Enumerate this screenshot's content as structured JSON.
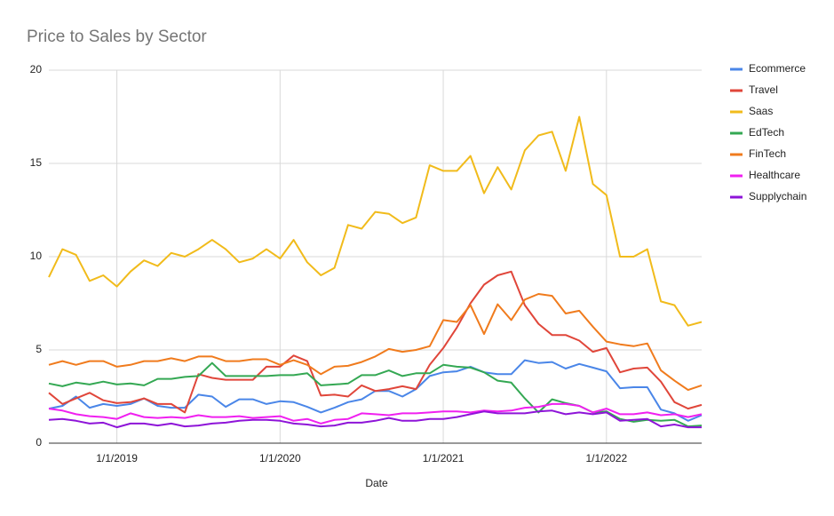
{
  "chart_data": {
    "type": "line",
    "title": "Price to Sales by Sector",
    "x_label": "Date",
    "x": [
      "2018-08",
      "2018-09",
      "2018-10",
      "2018-11",
      "2018-12",
      "2019-01",
      "2019-02",
      "2019-03",
      "2019-04",
      "2019-05",
      "2019-06",
      "2019-07",
      "2019-08",
      "2019-09",
      "2019-10",
      "2019-11",
      "2019-12",
      "2020-01",
      "2020-02",
      "2020-03",
      "2020-04",
      "2020-05",
      "2020-06",
      "2020-07",
      "2020-08",
      "2020-09",
      "2020-10",
      "2020-11",
      "2020-12",
      "2021-01",
      "2021-02",
      "2021-03",
      "2021-04",
      "2021-05",
      "2021-06",
      "2021-07",
      "2021-08",
      "2021-09",
      "2021-10",
      "2021-11",
      "2021-12",
      "2022-01",
      "2022-02",
      "2022-03",
      "2022-04",
      "2022-05",
      "2022-06",
      "2022-07",
      "2022-08"
    ],
    "xlim": [
      "2018-08",
      "2022-08"
    ],
    "xticks": [
      {
        "value": "2019-01",
        "label": "1/1/2019"
      },
      {
        "value": "2020-01",
        "label": "1/1/2020"
      },
      {
        "value": "2021-01",
        "label": "1/1/2021"
      },
      {
        "value": "2022-01",
        "label": "1/1/2022"
      }
    ],
    "ylim": [
      0,
      20
    ],
    "yticks": [
      0,
      5,
      10,
      15,
      20
    ],
    "grid": true,
    "legend": "right",
    "series": [
      {
        "name": "Ecommerce",
        "color": "#4a86e8",
        "values": [
          1.85,
          2.0,
          2.5,
          1.9,
          2.1,
          2.0,
          2.1,
          2.4,
          2.0,
          1.9,
          1.9,
          2.6,
          2.5,
          1.95,
          2.35,
          2.35,
          2.1,
          2.25,
          2.2,
          1.95,
          1.65,
          1.9,
          2.2,
          2.35,
          2.8,
          2.8,
          2.5,
          2.9,
          3.6,
          3.8,
          3.85,
          4.1,
          3.8,
          3.7,
          3.7,
          4.45,
          4.3,
          4.35,
          4.0,
          4.25,
          4.05,
          3.85,
          2.95,
          3.0,
          3.0,
          1.8,
          1.6,
          1.2,
          1.5
        ]
      },
      {
        "name": "Travel",
        "color": "#e0463a",
        "values": [
          2.7,
          2.1,
          2.4,
          2.7,
          2.3,
          2.15,
          2.2,
          2.4,
          2.1,
          2.1,
          1.65,
          3.7,
          3.5,
          3.4,
          3.4,
          3.4,
          4.1,
          4.1,
          4.7,
          4.4,
          2.55,
          2.6,
          2.5,
          3.1,
          2.8,
          2.9,
          3.05,
          2.9,
          4.2,
          5.1,
          6.2,
          7.5,
          8.5,
          9.0,
          9.2,
          7.4,
          6.4,
          5.8,
          5.8,
          5.5,
          4.9,
          5.1,
          3.8,
          4.0,
          4.05,
          3.3,
          2.2,
          1.85,
          2.05
        ]
      },
      {
        "name": "Saas",
        "color": "#f1bb1b",
        "values": [
          8.9,
          10.4,
          10.1,
          8.7,
          9.0,
          8.4,
          9.2,
          9.8,
          9.5,
          10.2,
          10.0,
          10.4,
          10.9,
          10.4,
          9.7,
          9.9,
          10.4,
          9.9,
          10.9,
          9.7,
          9.0,
          9.4,
          11.7,
          11.5,
          12.4,
          12.3,
          11.8,
          12.1,
          14.9,
          14.6,
          14.6,
          15.4,
          13.4,
          14.8,
          13.6,
          15.7,
          16.5,
          16.7,
          14.6,
          17.5,
          13.9,
          13.3,
          10.0,
          10.0,
          10.4,
          7.6,
          7.4,
          6.3,
          6.5
        ]
      },
      {
        "name": "EdTech",
        "color": "#34a853",
        "values": [
          3.2,
          3.05,
          3.25,
          3.15,
          3.3,
          3.15,
          3.2,
          3.1,
          3.45,
          3.45,
          3.55,
          3.6,
          4.3,
          3.6,
          3.6,
          3.6,
          3.6,
          3.65,
          3.65,
          3.75,
          3.1,
          3.15,
          3.2,
          3.65,
          3.65,
          3.9,
          3.6,
          3.75,
          3.75,
          4.2,
          4.1,
          4.05,
          3.8,
          3.35,
          3.25,
          2.4,
          1.65,
          2.35,
          2.15,
          2.0,
          1.65,
          1.7,
          1.3,
          1.15,
          1.25,
          1.2,
          1.25,
          0.9,
          0.95
        ]
      },
      {
        "name": "FinTech",
        "color": "#f07b1d",
        "values": [
          4.2,
          4.4,
          4.2,
          4.4,
          4.4,
          4.1,
          4.2,
          4.4,
          4.4,
          4.55,
          4.4,
          4.65,
          4.65,
          4.4,
          4.4,
          4.5,
          4.5,
          4.2,
          4.45,
          4.2,
          3.7,
          4.1,
          4.15,
          4.35,
          4.65,
          5.05,
          4.9,
          5.0,
          5.2,
          6.6,
          6.5,
          7.4,
          5.85,
          7.45,
          6.6,
          7.7,
          8.0,
          7.9,
          6.95,
          7.1,
          6.25,
          5.45,
          5.3,
          5.2,
          5.35,
          3.9,
          3.35,
          2.85,
          3.1
        ]
      },
      {
        "name": "Healthcare",
        "color": "#f020f0",
        "values": [
          1.85,
          1.75,
          1.55,
          1.45,
          1.4,
          1.3,
          1.6,
          1.4,
          1.35,
          1.4,
          1.35,
          1.5,
          1.4,
          1.4,
          1.45,
          1.35,
          1.4,
          1.45,
          1.2,
          1.3,
          1.05,
          1.25,
          1.3,
          1.6,
          1.55,
          1.5,
          1.6,
          1.6,
          1.65,
          1.7,
          1.7,
          1.65,
          1.75,
          1.7,
          1.75,
          1.9,
          1.95,
          2.1,
          2.1,
          2.0,
          1.65,
          1.85,
          1.55,
          1.55,
          1.65,
          1.5,
          1.55,
          1.4,
          1.55
        ]
      },
      {
        "name": "Supplychain",
        "color": "#8e14d8",
        "values": [
          1.25,
          1.3,
          1.2,
          1.05,
          1.1,
          0.85,
          1.05,
          1.05,
          0.95,
          1.05,
          0.9,
          0.95,
          1.05,
          1.1,
          1.2,
          1.25,
          1.25,
          1.2,
          1.05,
          1.0,
          0.9,
          0.95,
          1.1,
          1.1,
          1.2,
          1.35,
          1.2,
          1.2,
          1.3,
          1.3,
          1.4,
          1.55,
          1.7,
          1.6,
          1.6,
          1.6,
          1.7,
          1.75,
          1.55,
          1.65,
          1.55,
          1.65,
          1.2,
          1.25,
          1.3,
          0.9,
          1.0,
          0.85,
          0.85
        ]
      }
    ]
  }
}
